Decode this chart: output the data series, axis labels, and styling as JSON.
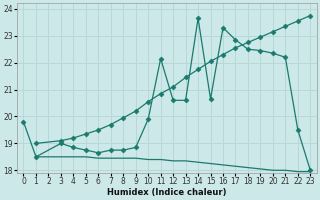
{
  "xlabel": "Humidex (Indice chaleur)",
  "bg_color": "#cce8e8",
  "grid_color": "#b8d8d8",
  "line_color": "#1a7a6e",
  "xlim": [
    -0.5,
    23.5
  ],
  "ylim": [
    17.9,
    24.2
  ],
  "xticks": [
    0,
    1,
    2,
    3,
    4,
    5,
    6,
    7,
    8,
    9,
    10,
    11,
    12,
    13,
    14,
    15,
    16,
    17,
    18,
    19,
    20,
    21,
    22,
    23
  ],
  "yticks": [
    18,
    19,
    20,
    21,
    22,
    23,
    24
  ],
  "series": [
    {
      "x": [
        0,
        1,
        3,
        4,
        5,
        6,
        7,
        8,
        9,
        10,
        11,
        12,
        13,
        14,
        15,
        16,
        17,
        18,
        19,
        20,
        21,
        22,
        23
      ],
      "y": [
        19.8,
        18.5,
        19.0,
        18.85,
        18.75,
        18.65,
        18.75,
        18.75,
        18.85,
        19.9,
        22.15,
        20.6,
        20.6,
        23.65,
        20.65,
        23.3,
        22.85,
        22.5,
        22.45,
        22.35,
        22.2,
        19.5,
        18.0
      ]
    },
    {
      "x": [
        1,
        3,
        4,
        5,
        6,
        7,
        8,
        9,
        10,
        11,
        12,
        13,
        14,
        15,
        16,
        17,
        18,
        19,
        20,
        21,
        22,
        23
      ],
      "y": [
        19.0,
        19.1,
        19.2,
        19.35,
        19.5,
        19.7,
        19.95,
        20.2,
        20.55,
        20.85,
        21.1,
        21.45,
        21.75,
        22.05,
        22.3,
        22.55,
        22.75,
        22.95,
        23.15,
        23.35,
        23.55,
        23.75
      ]
    },
    {
      "x": [
        1,
        3,
        4,
        5,
        6,
        7,
        8,
        9,
        10,
        11,
        12,
        13,
        14,
        15,
        16,
        17,
        18,
        19,
        20,
        21,
        22,
        23
      ],
      "y": [
        18.5,
        18.5,
        18.5,
        18.5,
        18.45,
        18.45,
        18.45,
        18.45,
        18.4,
        18.4,
        18.35,
        18.35,
        18.3,
        18.25,
        18.2,
        18.15,
        18.1,
        18.05,
        18.0,
        18.0,
        17.95,
        17.95
      ]
    }
  ]
}
